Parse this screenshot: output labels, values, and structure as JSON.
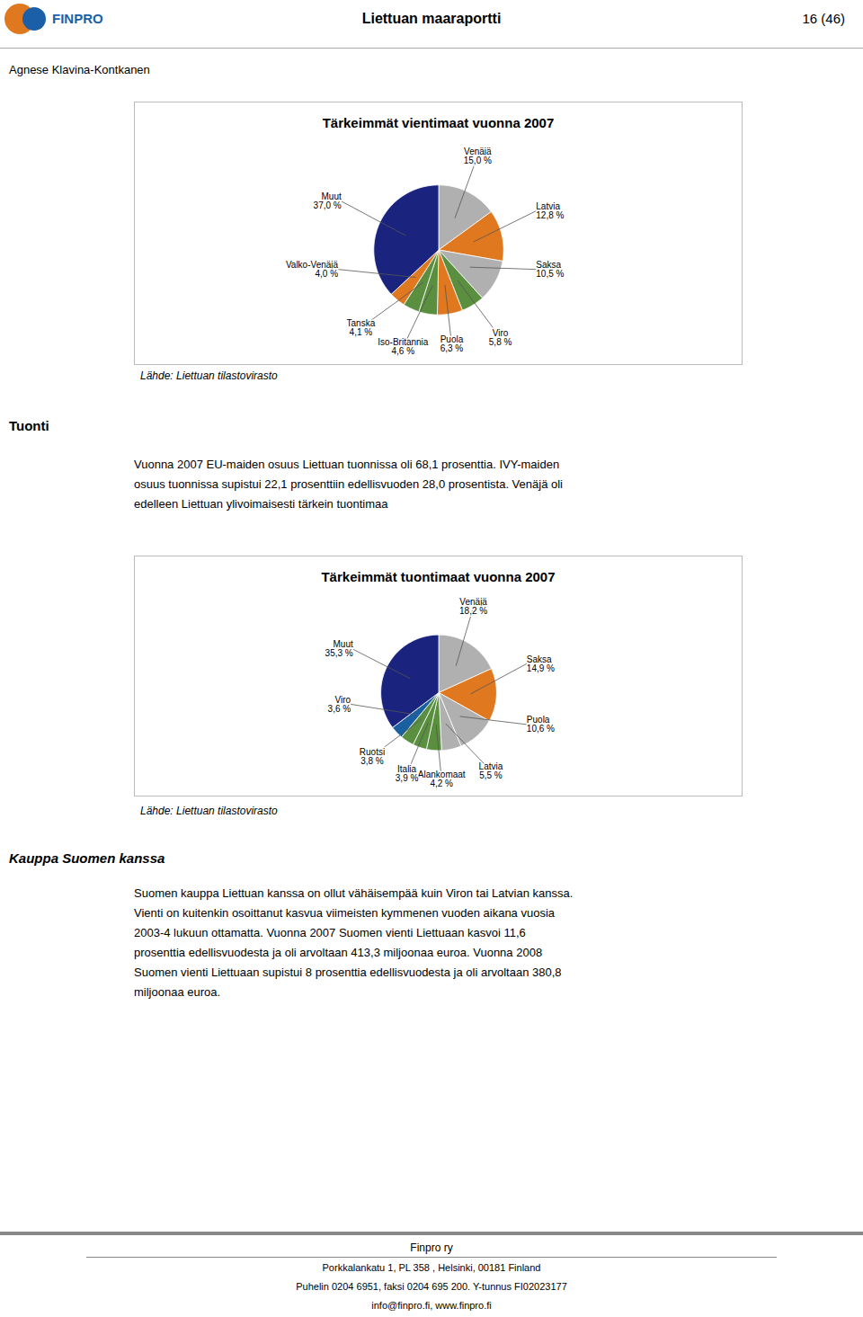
{
  "title": "Liettuan maaraportti",
  "annotations": [
    "FINPRO",
    "16 (46)",
    "Agnese Klavina-Kontkanen",
    "Tuonti",
    "Vuonna 2007 EU-maiden osuus Liettuan tuonnissa oli 68,1 prosenttia. IVY-maiden\nosuus tuonnissa supistui 22,1 prosenttiin edellisvuoden 28,0 prosentista. Venäjä oli\nedelleen Liettuan ylivoimaisesti tärkein tuontimaa",
    "Kauppa Suomen kanssa",
    "Suomen kauppa Liettuan kanssa on ollut vähäisempää kuin Viron tai Latvian kanssa.\nVienti on kuitenkin osoittanut kasvua viimeisten kymmenen vuoden aikana vuosia\n2003-4 lukuun ottamatta. Vuonna 2007 Suomen vienti Liettuaan kasvoi 11,6\nprosenttia edellisvuodesta ja oli arvoltaan 413,3 miljoonaa euroa. Vuonna 2008\nSuomen vienti Liettuaan supistui 8 prosenttia edellisvuodesta ja oli arvoltaan 380,8\nmiljoonaa euroa.",
    "Finpro ry",
    "Porkkalankatu 1, PL 358 , Helsinki, 00181 Finland",
    "Puhelin 0204 6951, faksi 0204 695 200. Y-tunnus FI02023177",
    "info@finpro.fi, www.finpro.fi"
  ],
  "chart_data": [
    {
      "type": "pie",
      "title": "Tärkeimmät vientimaat vuonna 2007",
      "categories": [
        "Venäjä",
        "Latvia",
        "Saksa",
        "Viro",
        "Puola",
        "Iso-Britannia",
        "Tanska",
        "Valko-Venäjä",
        "Muut"
      ],
      "values": [
        15.0,
        12.8,
        10.5,
        5.8,
        6.3,
        4.6,
        4.1,
        4.0,
        37.0
      ],
      "value_labels": [
        "15,0 %",
        "12,8 %",
        "10,5 %",
        "5,8 %",
        "6,3 %",
        "4,6 %",
        "4,1 %",
        "4,0 %",
        "37,0 %"
      ],
      "colors": [
        "#b0b0b0",
        "#e07820",
        "#b0b0b0",
        "#5a8f3f",
        "#e07820",
        "#5a8f3f",
        "#5a8f3f",
        "#e07820",
        "#1a237e"
      ],
      "data_labels": true,
      "annotations": [
        "Lähde: Liettuan tilastovirasto"
      ]
    },
    {
      "type": "pie",
      "title": "Tärkeimmät tuontimaat vuonna 2007",
      "categories": [
        "Venäjä",
        "Saksa",
        "Puola",
        "Latvia",
        "Alankomaat",
        "Italia",
        "Ruotsi",
        "Viro",
        "Muut"
      ],
      "values": [
        18.2,
        14.9,
        10.6,
        5.5,
        4.2,
        3.9,
        3.8,
        3.6,
        35.3
      ],
      "value_labels": [
        "18,2 %",
        "14,9 %",
        "10,6 %",
        "5,5 %",
        "4,2 %",
        "3,9 %",
        "3,8 %",
        "3,6 %",
        "35,3 %"
      ],
      "colors": [
        "#b0b0b0",
        "#e07820",
        "#b0b0b0",
        "#b0b0b0",
        "#5a8f3f",
        "#5a8f3f",
        "#5a8f3f",
        "#1a60a0",
        "#1a237e"
      ],
      "data_labels": true,
      "annotations": [
        "Lähde: Liettuan tilastovirasto"
      ]
    }
  ]
}
